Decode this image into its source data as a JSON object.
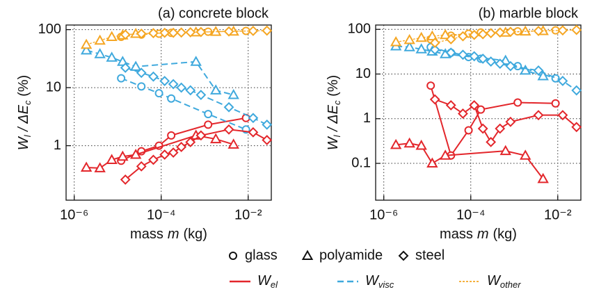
{
  "chart_data": [
    {
      "type": "line",
      "title": "(a) concrete block",
      "log_x": true,
      "log_y": true,
      "grid": true,
      "xlim": [
        6.5e-07,
        0.034
      ],
      "ylim": [
        0.115,
        120
      ],
      "xticks": [
        {
          "value": 1e-06,
          "label": "10⁻⁶"
        },
        {
          "value": 0.0001,
          "label": "10⁻⁴"
        },
        {
          "value": 0.01,
          "label": "10⁻²"
        }
      ],
      "yticks": [
        1,
        10,
        100
      ],
      "xlabel": {
        "text": "mass",
        "var": "m",
        "unit": "(kg)"
      },
      "ylabel": {
        "var": "W",
        "sub": "l",
        "mid": " / ΔE",
        "sub2": "c",
        "unit": " (%)"
      },
      "series": [
        {
          "marker": "circle",
          "line": "solid",
          "color": "#e3262b",
          "x": [
            1.2e-05,
            3.5e-05,
            8.9e-05,
            0.00017,
            0.0012,
            0.0089
          ],
          "values": [
            0.55,
            0.8,
            1.0,
            1.5,
            2.3,
            3.0
          ]
        },
        {
          "marker": "circle",
          "line": "dashed",
          "color": "#3fa9dd",
          "x": [
            1.2e-05,
            3.5e-05,
            8.9e-05,
            0.00017,
            0.0012,
            0.0089
          ],
          "values": [
            14.5,
            10.5,
            8,
            6.5,
            3.5,
            1.9
          ]
        },
        {
          "marker": "circle",
          "line": "dotted",
          "color": "#f5a623",
          "x": [
            1.2e-05,
            3.5e-05,
            8.9e-05,
            0.00017,
            0.0012,
            0.0089
          ],
          "values": [
            75,
            82,
            85,
            88,
            92,
            95
          ]
        },
        {
          "marker": "triangle",
          "line": "solid",
          "color": "#e3262b",
          "x": [
            1.9e-06,
            3.9e-06,
            7.3e-06,
            1.3e-05,
            2.6e-05,
            0.00063,
            0.0018,
            0.0046
          ],
          "values": [
            0.42,
            0.41,
            0.57,
            0.65,
            0.7,
            1.5,
            1.3,
            1.05
          ]
        },
        {
          "marker": "triangle",
          "line": "dashed",
          "color": "#3fa9dd",
          "x": [
            1.9e-06,
            3.9e-06,
            7.3e-06,
            1.3e-05,
            2.6e-05,
            0.00063,
            0.0018,
            0.0046
          ],
          "values": [
            44,
            38,
            33,
            28,
            23,
            28,
            9,
            7.5
          ]
        },
        {
          "marker": "triangle",
          "line": "dotted",
          "color": "#f5a623",
          "x": [
            1.9e-06,
            3.9e-06,
            7.3e-06,
            1.3e-05,
            2.6e-05,
            0.00063,
            0.0018,
            0.0046
          ],
          "values": [
            55,
            65,
            75,
            80,
            85,
            90,
            92,
            93
          ]
        },
        {
          "marker": "diamond",
          "line": "solid",
          "color": "#e3262b",
          "x": [
            1.5e-05,
            3.5e-05,
            6.6e-05,
            0.00012,
            0.00019,
            0.00029,
            0.00047,
            0.00082,
            0.0036,
            0.013,
            0.027
          ],
          "values": [
            0.26,
            0.44,
            0.57,
            0.7,
            0.76,
            0.95,
            1.15,
            1.5,
            1.9,
            1.7,
            1.25
          ]
        },
        {
          "marker": "diamond",
          "line": "dashed",
          "color": "#3fa9dd",
          "x": [
            1.5e-05,
            3.5e-05,
            6.6e-05,
            0.00012,
            0.00019,
            0.00029,
            0.00047,
            0.00082,
            0.0036,
            0.013,
            0.027
          ],
          "values": [
            22,
            18,
            15.5,
            13,
            11.5,
            10,
            9,
            7.5,
            4.6,
            3.0,
            2.3
          ]
        },
        {
          "marker": "diamond",
          "line": "dotted",
          "color": "#f5a623",
          "x": [
            1.5e-05,
            3.5e-05,
            6.6e-05,
            0.00012,
            0.00019,
            0.00029,
            0.00047,
            0.00082,
            0.0036,
            0.013,
            0.027
          ],
          "values": [
            82,
            85,
            87,
            88,
            88,
            89,
            90,
            91,
            93,
            95,
            96
          ]
        }
      ]
    },
    {
      "type": "line",
      "title": "(b) marble block",
      "log_x": true,
      "log_y": true,
      "grid": true,
      "xlim": [
        6.5e-07,
        0.034
      ],
      "ylim": [
        0.015,
        125
      ],
      "xticks": [
        {
          "value": 1e-06,
          "label": "10⁻⁶"
        },
        {
          "value": 0.0001,
          "label": "10⁻⁴"
        },
        {
          "value": 0.01,
          "label": "10⁻²"
        }
      ],
      "yticks": [
        0.1,
        1,
        10,
        100
      ],
      "xlabel": {
        "text": "mass",
        "var": "m",
        "unit": "(kg)"
      },
      "ylabel": {
        "var": "W",
        "sub": "l",
        "mid": " / ΔE",
        "sub2": "c",
        "unit": " (%)"
      },
      "series": [
        {
          "marker": "circle",
          "line": "solid",
          "color": "#e3262b",
          "x": [
            1.2e-05,
            3.5e-05,
            8.9e-05,
            0.00017,
            0.0012,
            0.0089
          ],
          "values": [
            5.5,
            0.15,
            0.55,
            1.6,
            2.3,
            2.2
          ]
        },
        {
          "marker": "circle",
          "line": "dashed",
          "color": "#3fa9dd",
          "x": [
            1.2e-05,
            3.5e-05,
            8.9e-05,
            0.00017,
            0.0012,
            0.0089
          ],
          "values": [
            40,
            30,
            24,
            22,
            15,
            8
          ]
        },
        {
          "marker": "circle",
          "line": "dotted",
          "color": "#f5a623",
          "x": [
            1.2e-05,
            3.5e-05,
            8.9e-05,
            0.00017,
            0.0012,
            0.0089
          ],
          "values": [
            60,
            72,
            80,
            85,
            90,
            95
          ]
        },
        {
          "marker": "triangle",
          "line": "solid",
          "color": "#e3262b",
          "x": [
            1.9e-06,
            3.9e-06,
            7.3e-06,
            1.3e-05,
            2.6e-05,
            0.00063,
            0.0018,
            0.0046
          ],
          "values": [
            0.26,
            0.28,
            0.25,
            0.1,
            0.15,
            0.19,
            0.15,
            0.045
          ]
        },
        {
          "marker": "triangle",
          "line": "dashed",
          "color": "#3fa9dd",
          "x": [
            1.9e-06,
            3.9e-06,
            7.3e-06,
            1.3e-05,
            2.6e-05,
            0.00063,
            0.0018,
            0.0046
          ],
          "values": [
            42,
            40,
            36,
            32,
            28,
            20,
            12,
            9
          ]
        },
        {
          "marker": "triangle",
          "line": "dotted",
          "color": "#f5a623",
          "x": [
            1.9e-06,
            3.9e-06,
            7.3e-06,
            1.3e-05,
            2.6e-05,
            0.00063,
            0.0018,
            0.0046
          ],
          "values": [
            52,
            58,
            65,
            70,
            75,
            85,
            90,
            92
          ]
        },
        {
          "marker": "diamond",
          "line": "solid",
          "color": "#e3262b",
          "x": [
            1.5e-05,
            3.5e-05,
            6.6e-05,
            0.00012,
            0.00019,
            0.00029,
            0.00047,
            0.00082,
            0.0036,
            0.013,
            0.027
          ],
          "values": [
            2.7,
            2.0,
            1.3,
            2.0,
            0.6,
            0.3,
            0.6,
            0.85,
            1.2,
            1.2,
            0.65
          ]
        },
        {
          "marker": "diamond",
          "line": "dashed",
          "color": "#3fa9dd",
          "x": [
            1.5e-05,
            3.5e-05,
            6.6e-05,
            0.00012,
            0.00019,
            0.00029,
            0.00047,
            0.00082,
            0.0036,
            0.013,
            0.027
          ],
          "values": [
            35,
            30,
            27,
            25,
            22,
            19,
            17,
            15,
            12,
            7,
            4.3
          ]
        },
        {
          "marker": "diamond",
          "line": "dotted",
          "color": "#f5a623",
          "x": [
            1.5e-05,
            3.5e-05,
            6.6e-05,
            0.00012,
            0.00019,
            0.00029,
            0.00047,
            0.00082,
            0.0036,
            0.013,
            0.027
          ],
          "values": [
            50,
            60,
            70,
            75,
            78,
            82,
            85,
            88,
            92,
            95,
            97
          ]
        }
      ]
    }
  ],
  "legend": {
    "markers": [
      {
        "label": "glass",
        "marker": "circle"
      },
      {
        "label": "polyamide",
        "marker": "triangle"
      },
      {
        "label": "steel",
        "marker": "diamond"
      }
    ],
    "lines": [
      {
        "symbol": "W",
        "sub": "el",
        "color": "#e3262b",
        "line": "solid"
      },
      {
        "symbol": "W",
        "sub": "visc",
        "color": "#3fa9dd",
        "line": "dashed"
      },
      {
        "symbol": "W",
        "sub": "other",
        "color": "#f5a623",
        "line": "dotted"
      }
    ]
  }
}
